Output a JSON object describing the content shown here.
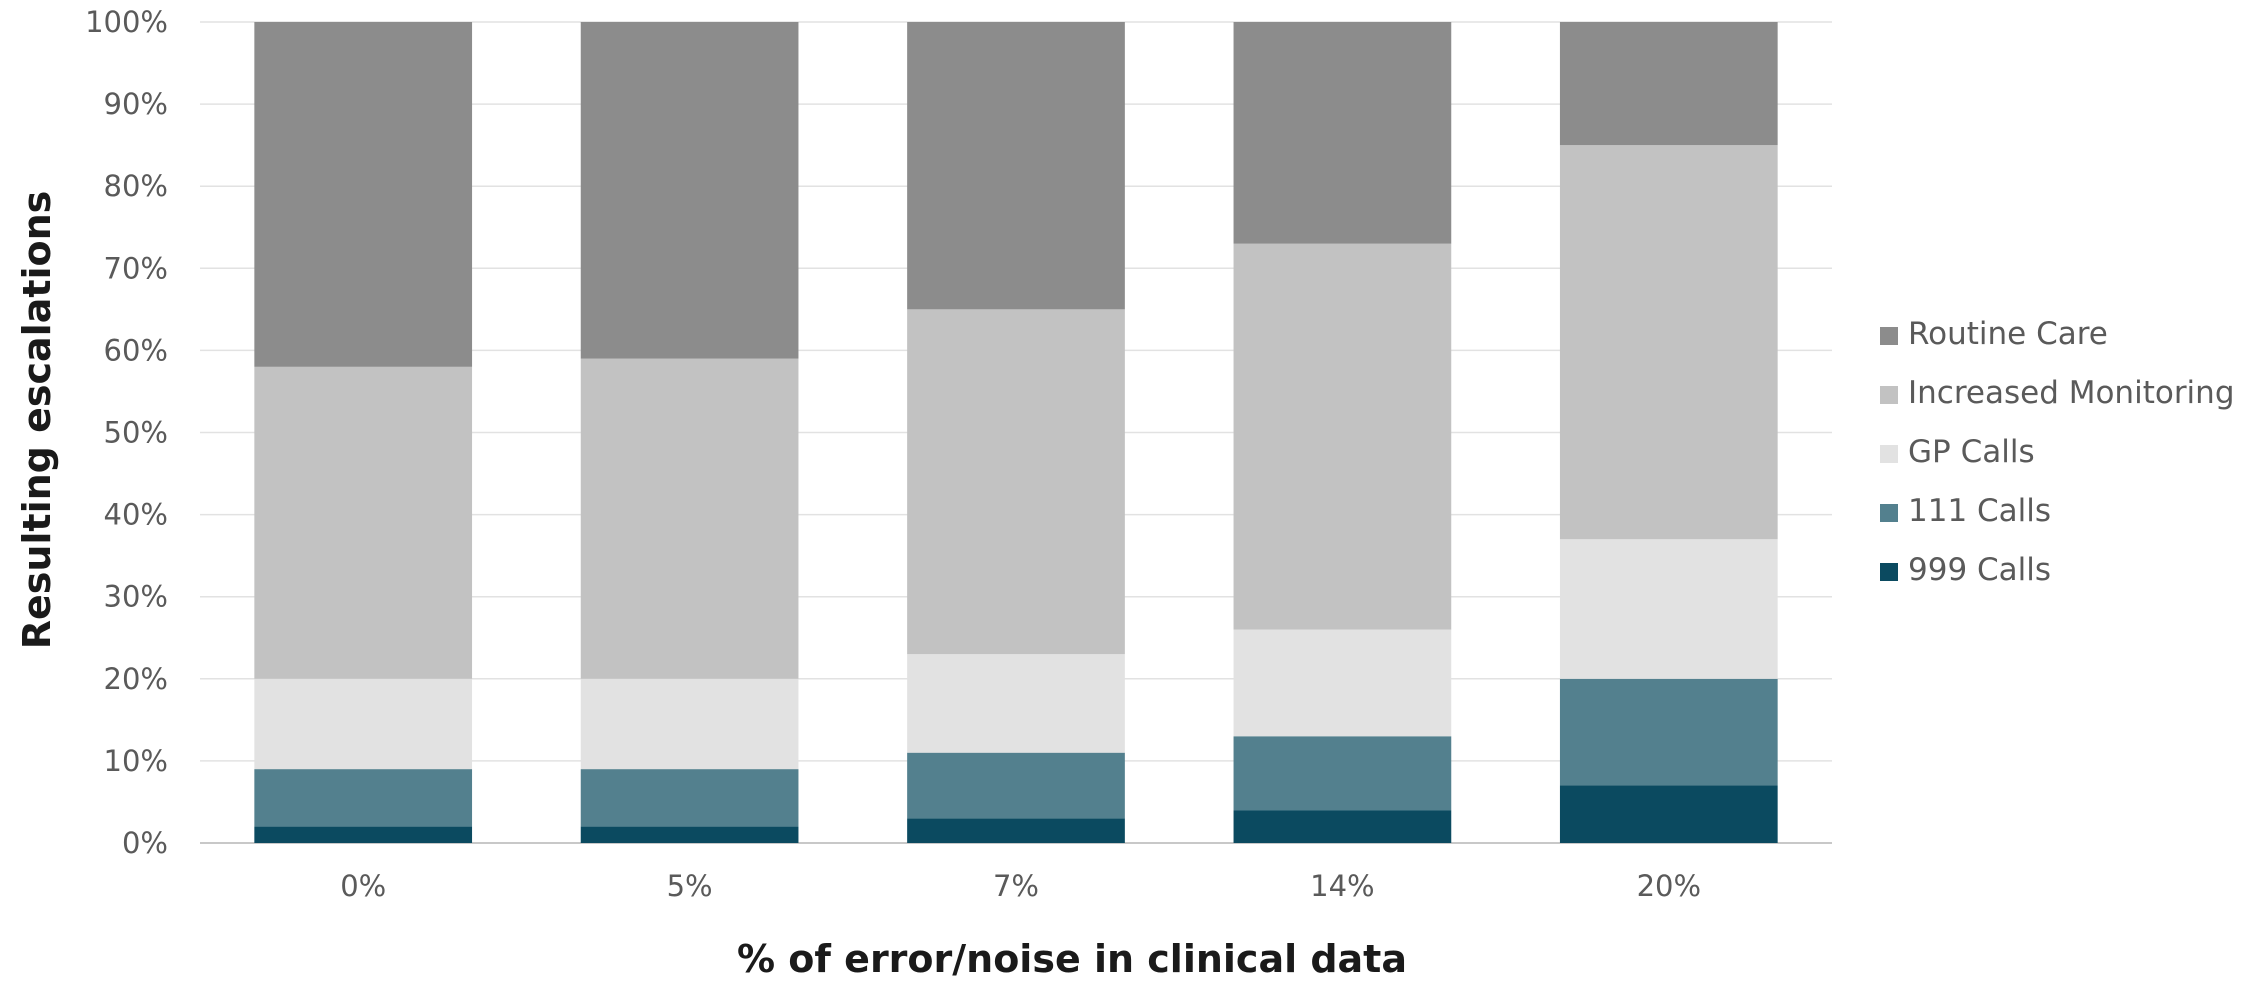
{
  "chart_data": {
    "type": "bar",
    "stacked": true,
    "percent": true,
    "categories": [
      "0%",
      "5%",
      "7%",
      "14%",
      "20%"
    ],
    "series": [
      {
        "name": "999 Calls",
        "color": "#0b4a60",
        "values": [
          2,
          2,
          3,
          4,
          7
        ]
      },
      {
        "name": "111 Calls",
        "color": "#53808e",
        "values": [
          7,
          7,
          8,
          9,
          13
        ]
      },
      {
        "name": "GP Calls",
        "color": "#e2e2e2",
        "values": [
          11,
          11,
          12,
          13,
          17
        ]
      },
      {
        "name": "Increased Monitoring",
        "color": "#c2c2c2",
        "values": [
          38,
          39,
          42,
          47,
          48
        ]
      },
      {
        "name": "Routine Care",
        "color": "#8c8c8c",
        "values": [
          42,
          41,
          35,
          27,
          15
        ]
      }
    ],
    "legend_order": [
      "Routine Care",
      "Increased Monitoring",
      "GP Calls",
      "111 Calls",
      "999 Calls"
    ],
    "xlabel": "% of error/noise in clinical data",
    "ylabel": "Resulting escalations",
    "ylim": [
      0,
      100
    ],
    "yticks": [
      "0%",
      "10%",
      "20%",
      "30%",
      "40%",
      "50%",
      "60%",
      "70%",
      "80%",
      "90%",
      "100%"
    ],
    "grid": true,
    "legend_position": "right"
  }
}
